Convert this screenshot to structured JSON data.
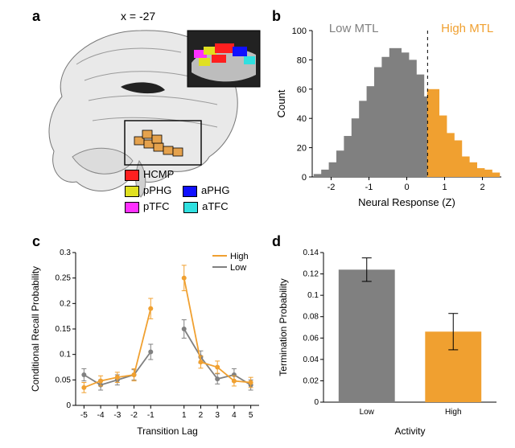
{
  "panel_labels": {
    "a": "a",
    "b": "b",
    "c": "c",
    "d": "d"
  },
  "panel_a": {
    "slice_label": "x = -27",
    "roi_fill": "#e5a24d",
    "roi_stroke": "#000000",
    "legend": [
      {
        "name": "HCMP",
        "color": "#ff1f1f"
      },
      {
        "name": "pPHG",
        "color": "#e0e020"
      },
      {
        "name": "aPHG",
        "color": "#1010ff"
      },
      {
        "name": "pTFC",
        "color": "#ff30ff"
      },
      {
        "name": "aTFC",
        "color": "#30e0e0"
      }
    ]
  },
  "panel_b": {
    "type": "histogram",
    "xlabel": "Neural Response (Z)",
    "ylabel": "Count",
    "ylim": [
      0,
      100
    ],
    "yticks": [
      0,
      20,
      40,
      60,
      80,
      100
    ],
    "xlim": [
      -2.5,
      2.5
    ],
    "xticks": [
      -2,
      -1,
      0,
      1,
      2
    ],
    "label_low": "Low MTL",
    "label_high": "High MTL",
    "low_color": "#808080",
    "high_color": "#f0a030",
    "threshold": 0.55,
    "bin_centers": [
      -2.3,
      -2.1,
      -1.9,
      -1.7,
      -1.5,
      -1.3,
      -1.1,
      -0.9,
      -0.7,
      -0.5,
      -0.3,
      -0.1,
      0.1,
      0.3,
      0.5,
      0.7,
      0.9,
      1.1,
      1.3,
      1.5,
      1.7,
      1.9,
      2.1,
      2.3
    ],
    "counts": [
      2,
      5,
      10,
      18,
      28,
      40,
      52,
      62,
      75,
      82,
      88,
      85,
      80,
      70,
      55,
      60,
      42,
      30,
      25,
      14,
      10,
      6,
      5,
      3
    ],
    "binwidth": 0.18,
    "axis_color": "#000000",
    "label_fontsize": 13,
    "tick_fontsize": 11
  },
  "panel_c": {
    "type": "line",
    "xlabel": "Transition Lag",
    "ylabel": "Conditional Recall Probability",
    "xlim": [
      -5.5,
      5.5
    ],
    "xticks": [
      -5,
      -4,
      -3,
      -2,
      -1,
      1,
      2,
      3,
      4,
      5
    ],
    "ylim": [
      0,
      0.3
    ],
    "yticks": [
      0,
      0.05,
      0.1,
      0.15,
      0.2,
      0.25,
      0.3
    ],
    "legend": [
      {
        "name": "High",
        "color": "#f0a030"
      },
      {
        "name": "Low",
        "color": "#808080"
      }
    ],
    "high": {
      "x": [
        -5,
        -4,
        -3,
        -2,
        -1,
        1,
        2,
        3,
        4,
        5
      ],
      "y": [
        0.035,
        0.048,
        0.055,
        0.06,
        0.19,
        0.25,
        0.085,
        0.075,
        0.048,
        0.045
      ],
      "err": [
        0.01,
        0.01,
        0.01,
        0.012,
        0.02,
        0.025,
        0.012,
        0.012,
        0.01,
        0.01
      ]
    },
    "low": {
      "x": [
        -5,
        -4,
        -3,
        -2,
        -1,
        1,
        2,
        3,
        4,
        5
      ],
      "y": [
        0.06,
        0.04,
        0.05,
        0.06,
        0.105,
        0.15,
        0.095,
        0.052,
        0.06,
        0.04
      ],
      "err": [
        0.012,
        0.01,
        0.01,
        0.01,
        0.015,
        0.018,
        0.012,
        0.01,
        0.012,
        0.01
      ]
    },
    "line_width": 1.8,
    "marker_size": 3,
    "axis_color": "#000000",
    "label_fontsize": 12,
    "tick_fontsize": 10
  },
  "panel_d": {
    "type": "bar",
    "xlabel": "Activity",
    "ylabel": "Termination Probability",
    "ylim": [
      0,
      0.14
    ],
    "yticks": [
      0,
      0.02,
      0.04,
      0.06,
      0.08,
      0.1,
      0.12,
      0.14
    ],
    "categories": [
      "Low",
      "High"
    ],
    "values": [
      0.124,
      0.066
    ],
    "errors": [
      0.011,
      0.017
    ],
    "bar_colors": [
      "#808080",
      "#f0a030"
    ],
    "bar_width": 0.65,
    "axis_color": "#000000",
    "label_fontsize": 12,
    "tick_fontsize": 10
  }
}
